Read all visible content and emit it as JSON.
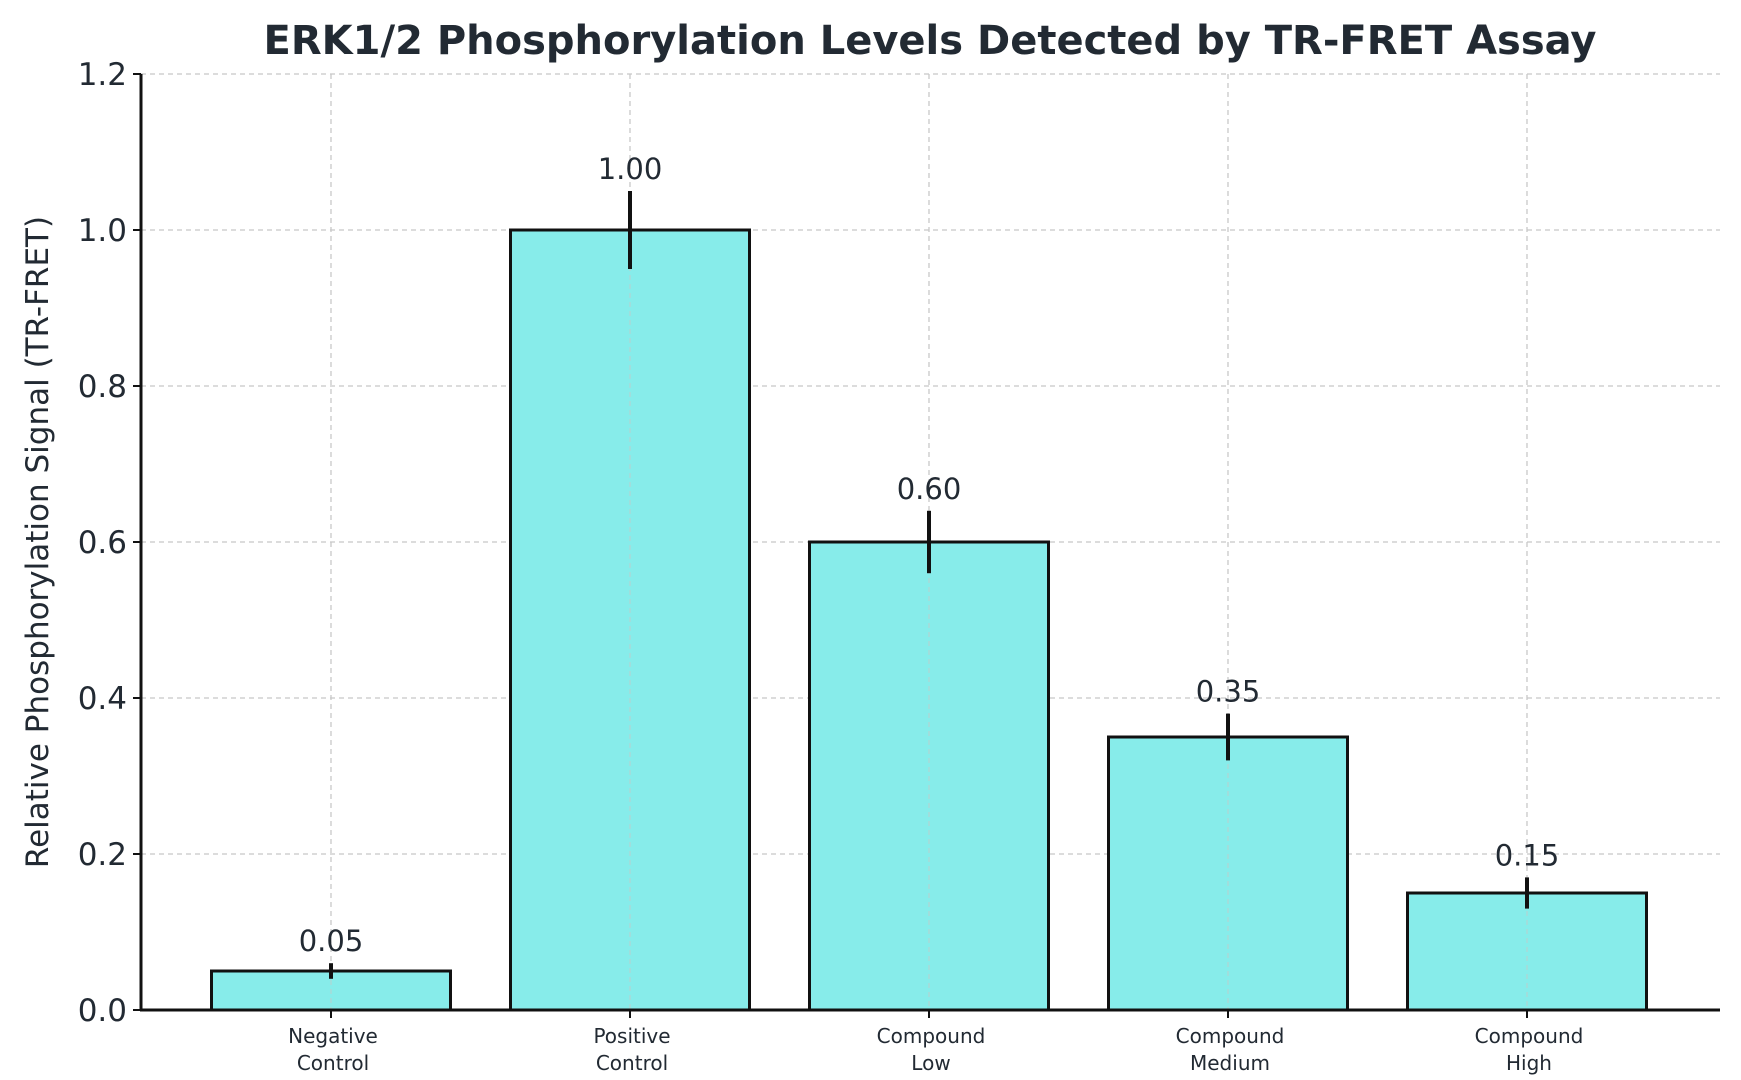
{
  "chart_data": {
    "type": "bar",
    "title": "ERK1/2 Phosphorylation Levels Detected by TR-FRET Assay",
    "xlabel": "",
    "ylabel": "Relative Phosphorylation Signal (TR-FRET)",
    "categories": [
      [
        "Negative",
        "Control"
      ],
      [
        "Positive",
        "Control"
      ],
      [
        "Compound",
        "Low"
      ],
      [
        "Compound",
        "Medium"
      ],
      [
        "Compound",
        "High"
      ]
    ],
    "values": [
      0.05,
      1.0,
      0.6,
      0.35,
      0.15
    ],
    "errors": [
      0.01,
      0.05,
      0.04,
      0.03,
      0.02
    ],
    "value_labels": [
      "0.05",
      "1.00",
      "0.60",
      "0.35",
      "0.15"
    ],
    "ylim": [
      0,
      1.2
    ],
    "yticks": [
      0.0,
      0.2,
      0.4,
      0.6,
      0.8,
      1.0,
      1.2
    ],
    "ytick_labels": [
      "0.0",
      "0.2",
      "0.4",
      "0.6",
      "0.8",
      "1.0",
      "1.2"
    ],
    "grid": true,
    "colors": {
      "bar": "#87ECEA",
      "edge": "#111111",
      "grid": "#c8c8c8",
      "text": "#222a33"
    }
  }
}
